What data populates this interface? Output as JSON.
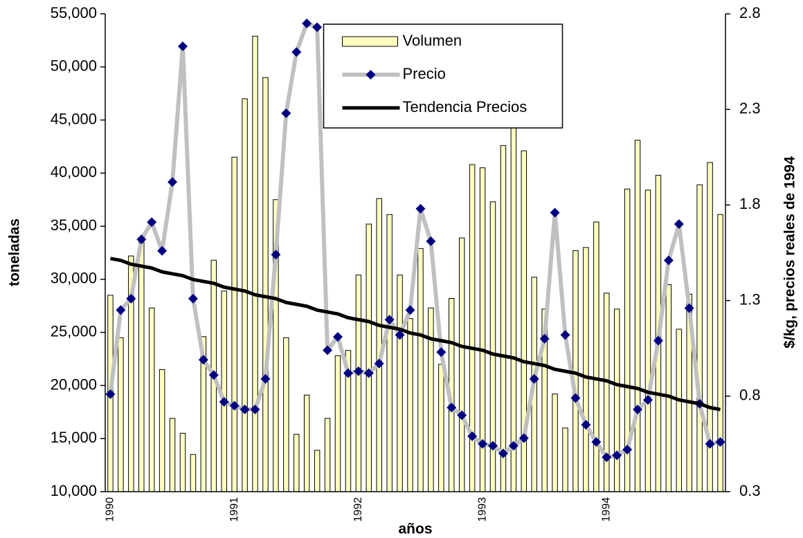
{
  "chart_data": {
    "type": "bar-line",
    "x_label": "años",
    "y_label": "toneladas",
    "y2_label": "$/kg, precios reales de 1994",
    "categories": [
      "1990",
      null,
      null,
      null,
      null,
      null,
      null,
      null,
      null,
      null,
      null,
      null,
      "1991",
      null,
      null,
      null,
      null,
      null,
      null,
      null,
      null,
      null,
      null,
      null,
      "1992",
      null,
      null,
      null,
      null,
      null,
      null,
      null,
      null,
      null,
      null,
      null,
      "1993",
      null,
      null,
      null,
      null,
      null,
      null,
      null,
      null,
      null,
      null,
      null,
      "1994",
      null,
      null,
      null,
      null,
      null,
      null,
      null,
      null,
      null,
      null,
      null
    ],
    "series": [
      {
        "name": "Volumen",
        "type": "bar",
        "axis": "y",
        "color": "#ffffc0",
        "values": [
          28500,
          24500,
          32200,
          33500,
          27300,
          21500,
          16900,
          15500,
          13500,
          24600,
          31800,
          28900,
          41500,
          47000,
          52900,
          49000,
          37500,
          24500,
          15400,
          19100,
          13900,
          16900,
          22800,
          23300,
          30400,
          35200,
          37600,
          36100,
          30400,
          26300,
          32900,
          27300,
          22000,
          28200,
          33900,
          40800,
          40500,
          37300,
          42600,
          45500,
          42100,
          30200,
          27200,
          19200,
          16000,
          32700,
          33000,
          35400,
          28700,
          27200,
          38500,
          43100,
          38400,
          39800,
          29500,
          25300,
          28600,
          38900,
          41000,
          36100
        ]
      },
      {
        "name": "Precio",
        "type": "line",
        "axis": "y2",
        "color": "#c0c0c0",
        "marker_color": "#000080",
        "values": [
          0.81,
          1.25,
          1.31,
          1.62,
          1.71,
          1.56,
          1.92,
          2.63,
          1.31,
          0.99,
          0.91,
          0.77,
          0.75,
          0.73,
          0.73,
          0.89,
          1.54,
          2.28,
          2.6,
          2.75,
          2.73,
          1.04,
          1.11,
          0.92,
          0.93,
          0.92,
          0.97,
          1.2,
          1.12,
          1.25,
          1.78,
          1.61,
          1.03,
          0.74,
          0.7,
          0.59,
          0.55,
          0.54,
          0.5,
          0.54,
          0.58,
          0.89,
          1.1,
          1.76,
          1.12,
          0.79,
          0.65,
          0.56,
          0.48,
          0.49,
          0.52,
          0.73,
          0.78,
          1.09,
          1.51,
          1.7,
          1.26,
          0.76,
          0.55,
          0.56
        ]
      },
      {
        "name": "Tendencia Precios",
        "type": "line",
        "axis": "y2",
        "color": "#000000",
        "values": [
          1.52,
          1.51,
          1.49,
          1.48,
          1.47,
          1.45,
          1.44,
          1.43,
          1.41,
          1.4,
          1.39,
          1.37,
          1.36,
          1.35,
          1.33,
          1.32,
          1.31,
          1.29,
          1.28,
          1.27,
          1.25,
          1.24,
          1.23,
          1.21,
          1.2,
          1.19,
          1.17,
          1.16,
          1.15,
          1.13,
          1.12,
          1.1,
          1.09,
          1.08,
          1.06,
          1.05,
          1.04,
          1.02,
          1.01,
          1.0,
          0.98,
          0.97,
          0.96,
          0.94,
          0.93,
          0.92,
          0.9,
          0.89,
          0.88,
          0.86,
          0.85,
          0.84,
          0.82,
          0.81,
          0.8,
          0.78,
          0.77,
          0.76,
          0.74,
          0.73
        ]
      }
    ],
    "ylim": [
      10000,
      55000
    ],
    "yticks": [
      {
        "value": 10000,
        "label": "10,000"
      },
      {
        "value": 15000,
        "label": "15,000"
      },
      {
        "value": 20000,
        "label": "20,000"
      },
      {
        "value": 25000,
        "label": "25,000"
      },
      {
        "value": 30000,
        "label": "30,000"
      },
      {
        "value": 35000,
        "label": "35,000"
      },
      {
        "value": 40000,
        "label": "40,000"
      },
      {
        "value": 45000,
        "label": "45,000"
      },
      {
        "value": 50000,
        "label": "50,000"
      },
      {
        "value": 55000,
        "label": "55,000"
      }
    ],
    "y2lim": [
      0.3,
      2.8
    ],
    "y2ticks": [
      0.3,
      0.8,
      1.3,
      1.8,
      2.3,
      2.8
    ],
    "grid": false,
    "legend": "top-center"
  }
}
